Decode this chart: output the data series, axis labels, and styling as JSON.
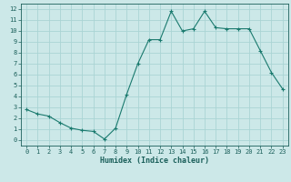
{
  "x": [
    0,
    1,
    2,
    3,
    4,
    5,
    6,
    7,
    8,
    9,
    10,
    11,
    12,
    13,
    14,
    15,
    16,
    17,
    18,
    19,
    20,
    21,
    22,
    23
  ],
  "y": [
    2.8,
    2.4,
    2.2,
    1.6,
    1.1,
    0.9,
    0.8,
    0.1,
    1.1,
    4.2,
    7.0,
    9.2,
    9.2,
    11.8,
    10.0,
    10.2,
    11.8,
    10.3,
    10.2,
    10.2,
    10.2,
    8.2,
    6.2,
    4.7
  ],
  "xlabel": "Humidex (Indice chaleur)",
  "line_color": "#1a7a6e",
  "marker": "+",
  "bg_color": "#cce8e8",
  "grid_color": "#aad4d4",
  "tick_color": "#1a5f5a",
  "label_color": "#1a5f5a",
  "xlim": [
    -0.5,
    23.5
  ],
  "ylim": [
    -0.5,
    12.5
  ],
  "xticks": [
    0,
    1,
    2,
    3,
    4,
    5,
    6,
    7,
    8,
    9,
    10,
    11,
    12,
    13,
    14,
    15,
    16,
    17,
    18,
    19,
    20,
    21,
    22,
    23
  ],
  "yticks": [
    0,
    1,
    2,
    3,
    4,
    5,
    6,
    7,
    8,
    9,
    10,
    11,
    12
  ],
  "tick_fontsize": 5.0,
  "xlabel_fontsize": 6.0
}
